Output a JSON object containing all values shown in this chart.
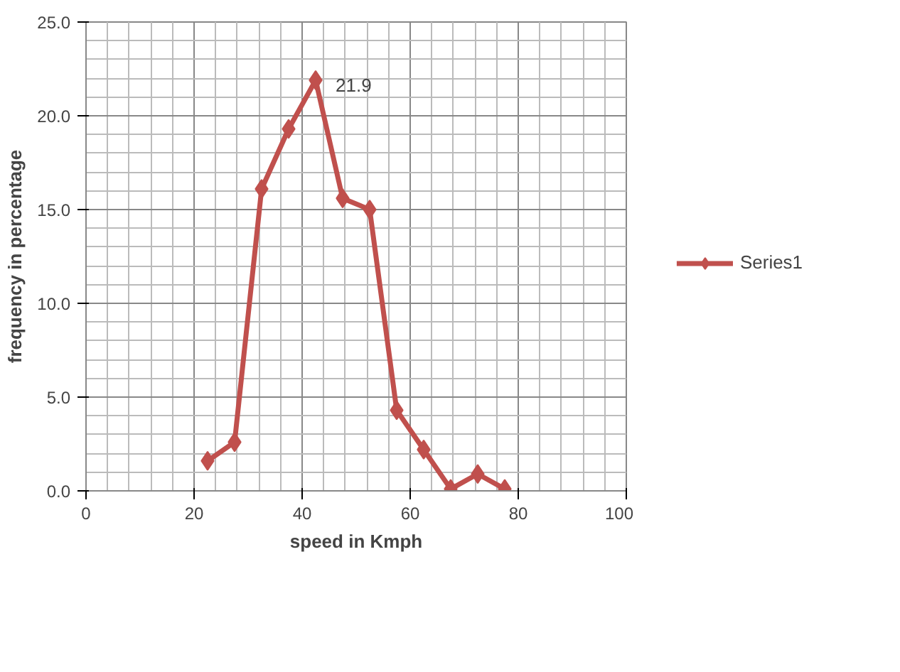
{
  "chart_data": {
    "type": "line",
    "xlabel": "speed in Kmph",
    "ylabel": "frequency in percentage",
    "xlim": [
      0,
      100
    ],
    "xticks": [
      0,
      20,
      40,
      60,
      80,
      100
    ],
    "ylim": [
      0,
      25
    ],
    "yticks": [
      {
        "value": 0,
        "label": "0.0"
      },
      {
        "value": 5,
        "label": "5.0"
      },
      {
        "value": 10,
        "label": "10.0"
      },
      {
        "value": 15,
        "label": "15.0"
      },
      {
        "value": 20,
        "label": "20.0"
      },
      {
        "value": 25,
        "label": "25.0"
      }
    ],
    "series": [
      {
        "name": "Series1",
        "color": "#c0504d",
        "x": [
          22.5,
          27.5,
          32.5,
          37.5,
          42.5,
          47.5,
          52.5,
          57.5,
          62.5,
          67.5,
          72.5,
          77.5
        ],
        "values": [
          1.6,
          2.6,
          16.1,
          19.3,
          21.9,
          15.6,
          15.0,
          4.3,
          2.2,
          0.1,
          0.9,
          0.1
        ]
      }
    ],
    "annotations": [
      {
        "text": "21.9",
        "x": 42.5,
        "y": 21.9
      }
    ],
    "grid": true,
    "legend": "right",
    "marker": "diamond",
    "line_style": "solid"
  }
}
